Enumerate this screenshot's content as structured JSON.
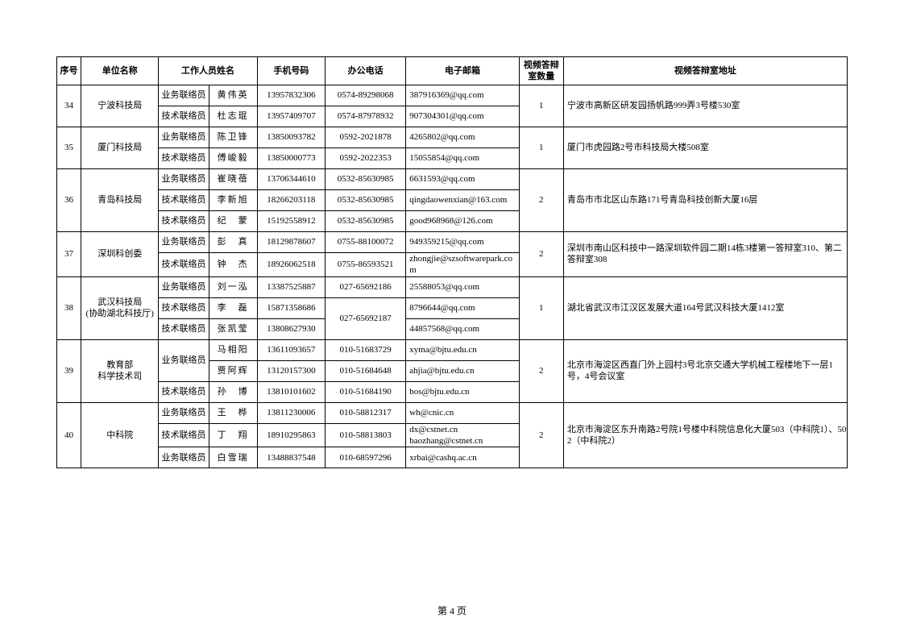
{
  "headers": {
    "seq": "序号",
    "org": "单位名称",
    "staff": "工作人员姓名",
    "phone": "手机号码",
    "tel": "办公电话",
    "email": "电子邮箱",
    "count": "视频答辩室数量",
    "addr": "视频答辩室地址"
  },
  "footer": "第 4 页",
  "col_widths": {
    "seq": 30,
    "org": 96,
    "role": 62,
    "name": 60,
    "phone": 84,
    "tel": 100,
    "email": 140,
    "count": 55,
    "addr": 351
  },
  "rows": [
    {
      "seq": "34",
      "org": "宁波科技局",
      "count": "1",
      "addr": "宁波市高新区研发园扬帆路999弄3号楼530室",
      "staff": [
        {
          "role": "业务联络员",
          "name": "黄伟英",
          "phone": "13957832306",
          "tel": "0574-89298068",
          "email": "387916369@qq.com"
        },
        {
          "role": "技术联络员",
          "name": "杜志琨",
          "phone": "13957409707",
          "tel": "0574-87978932",
          "email": "907304301@qq.com"
        }
      ]
    },
    {
      "seq": "35",
      "org": "厦门科技局",
      "count": "1",
      "addr": "厦门市虎园路2号市科技局大楼508室",
      "staff": [
        {
          "role": "业务联络员",
          "name": "陈卫锋",
          "phone": "13850093782",
          "tel": "0592-2021878",
          "email": "4265802@qq.com"
        },
        {
          "role": "技术联络员",
          "name": "傅峻毅",
          "phone": "13850000773",
          "tel": "0592-2022353",
          "email": "15055854@qq.com"
        }
      ]
    },
    {
      "seq": "36",
      "org": "青岛科技局",
      "count": "2",
      "addr": "青岛市市北区山东路171号青岛科技创新大厦16层",
      "staff": [
        {
          "role": "业务联络员",
          "name": "崔晓蓓",
          "phone": "13706344610",
          "tel": "0532-85630985",
          "email": "6631593@qq.com"
        },
        {
          "role": "技术联络员",
          "name": "李新旭",
          "phone": "18266203118",
          "tel": "0532-85630985",
          "email": "qingdaowenxian@163.com"
        },
        {
          "role": "技术联络员",
          "name": "纪　蒙",
          "phone": "15192558912",
          "tel": "0532-85630985",
          "email": "good968968@126.com"
        }
      ]
    },
    {
      "seq": "37",
      "org": "深圳科创委",
      "count": "2",
      "addr": "深圳市南山区科技中一路深圳软件园二期14栋3楼第一答辩室310、第二答辩室308",
      "staff": [
        {
          "role": "业务联络员",
          "name": "彭　真",
          "phone": "18129878607",
          "tel": "0755-88100072",
          "email": "949359215@qq.com"
        },
        {
          "role": "技术联络员",
          "name": "钟　杰",
          "phone": "18926062518",
          "tel": "0755-86593521",
          "email": "zhongjie@szsoftwarepark.com"
        }
      ]
    },
    {
      "seq": "38",
      "org": "武汉科技局\n(协助湖北科技厅)",
      "count": "1",
      "addr": "湖北省武汉市江汉区发展大道164号武汉科技大厦1412室",
      "staff": [
        {
          "role": "业务联络员",
          "name": "刘一泓",
          "phone": "13387525887",
          "tel": "027-65692186",
          "email": "25588053@qq.com"
        },
        {
          "role": "技术联络员",
          "name": "李　磊",
          "phone": "15871358686",
          "tel": "027-65692187",
          "email": "8796644@qq.com",
          "tel_rowspan": 2
        },
        {
          "role": "技术联络员",
          "name": "张凯莹",
          "phone": "13808627930",
          "email": "44857568@qq.com"
        }
      ]
    },
    {
      "seq": "39",
      "org": "教育部\n科学技术司",
      "count": "2",
      "addr": "北京市海淀区西直门外上园村3号北京交通大学机械工程楼地下一层1号，4号会议室",
      "staff": [
        {
          "role": "业务联络员",
          "name": "马相阳",
          "phone": "13611093657",
          "tel": "010-51683729",
          "email": "xyma@bjtu.edu.cn",
          "role_rowspan": 2
        },
        {
          "name": "贾阿辉",
          "phone": "13120157300",
          "tel": "010-51684648",
          "email": "ahjia@bjtu.edu.cn"
        },
        {
          "role": "技术联络员",
          "name": "孙　博",
          "phone": "13810101602",
          "tel": "010-51684190",
          "email": "bos@bjtu.edu.cn"
        }
      ]
    },
    {
      "seq": "40",
      "org": "中科院",
      "count": "2",
      "addr": "北京市海淀区东升南路2号院1号楼中科院信息化大厦503（中科院1）、502（中科院2）",
      "staff": [
        {
          "role": "业务联络员",
          "name": "王　桦",
          "phone": "13811230006",
          "tel": "010-58812317",
          "email": "wh@cnic.cn"
        },
        {
          "role": "技术联络员",
          "name": "丁　翔",
          "phone": "18910295863",
          "tel": "010-58813803",
          "email": "dx@cstnet.cn\nbaozhang@cstnet.cn"
        },
        {
          "role": "业务联络员",
          "name": "白雪瑞",
          "phone": "13488837548",
          "tel": "010-68597296",
          "email": "xrbai@cashq.ac.cn"
        }
      ]
    }
  ]
}
